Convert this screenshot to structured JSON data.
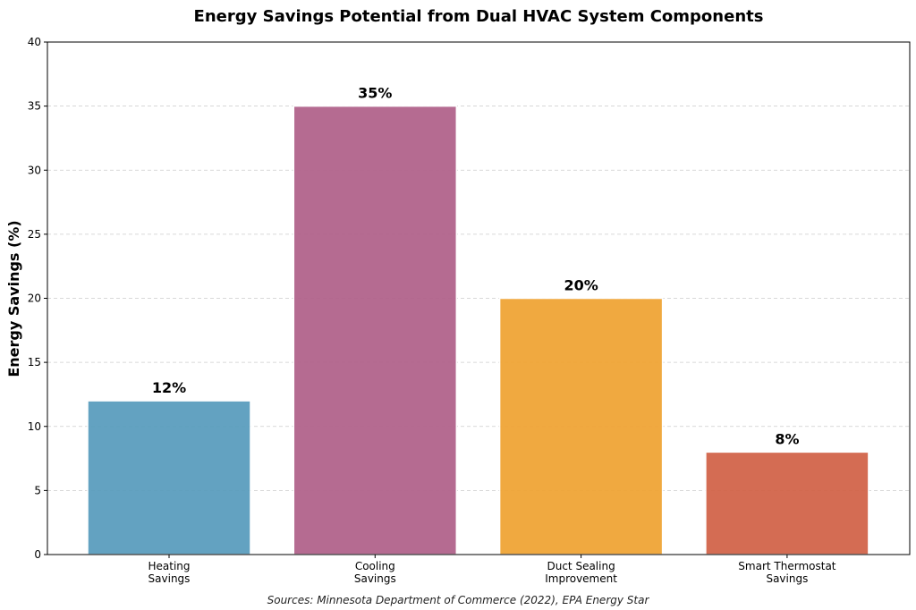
{
  "chart_data": {
    "type": "bar",
    "title": "Energy Savings Potential from Dual HVAC System Components",
    "xlabel": "",
    "ylabel": "Energy Savings (%)",
    "categories": [
      "Heating\nSavings",
      "Cooling\nSavings",
      "Duct Sealing\nImprovement",
      "Smart Thermostat\nSavings"
    ],
    "values": [
      12,
      35,
      20,
      8
    ],
    "data_labels": [
      "12%",
      "35%",
      "20%",
      "8%"
    ],
    "colors": [
      "#5B9EBE",
      "#B2648C",
      "#F0A536",
      "#D2654A"
    ],
    "ylim": [
      0,
      40
    ],
    "yticks": [
      0,
      5,
      10,
      15,
      20,
      25,
      30,
      35,
      40
    ],
    "grid": "y-dashed",
    "legend": "none",
    "source_note": "Sources: Minnesota Department of Commerce (2022), EPA Energy Star"
  }
}
